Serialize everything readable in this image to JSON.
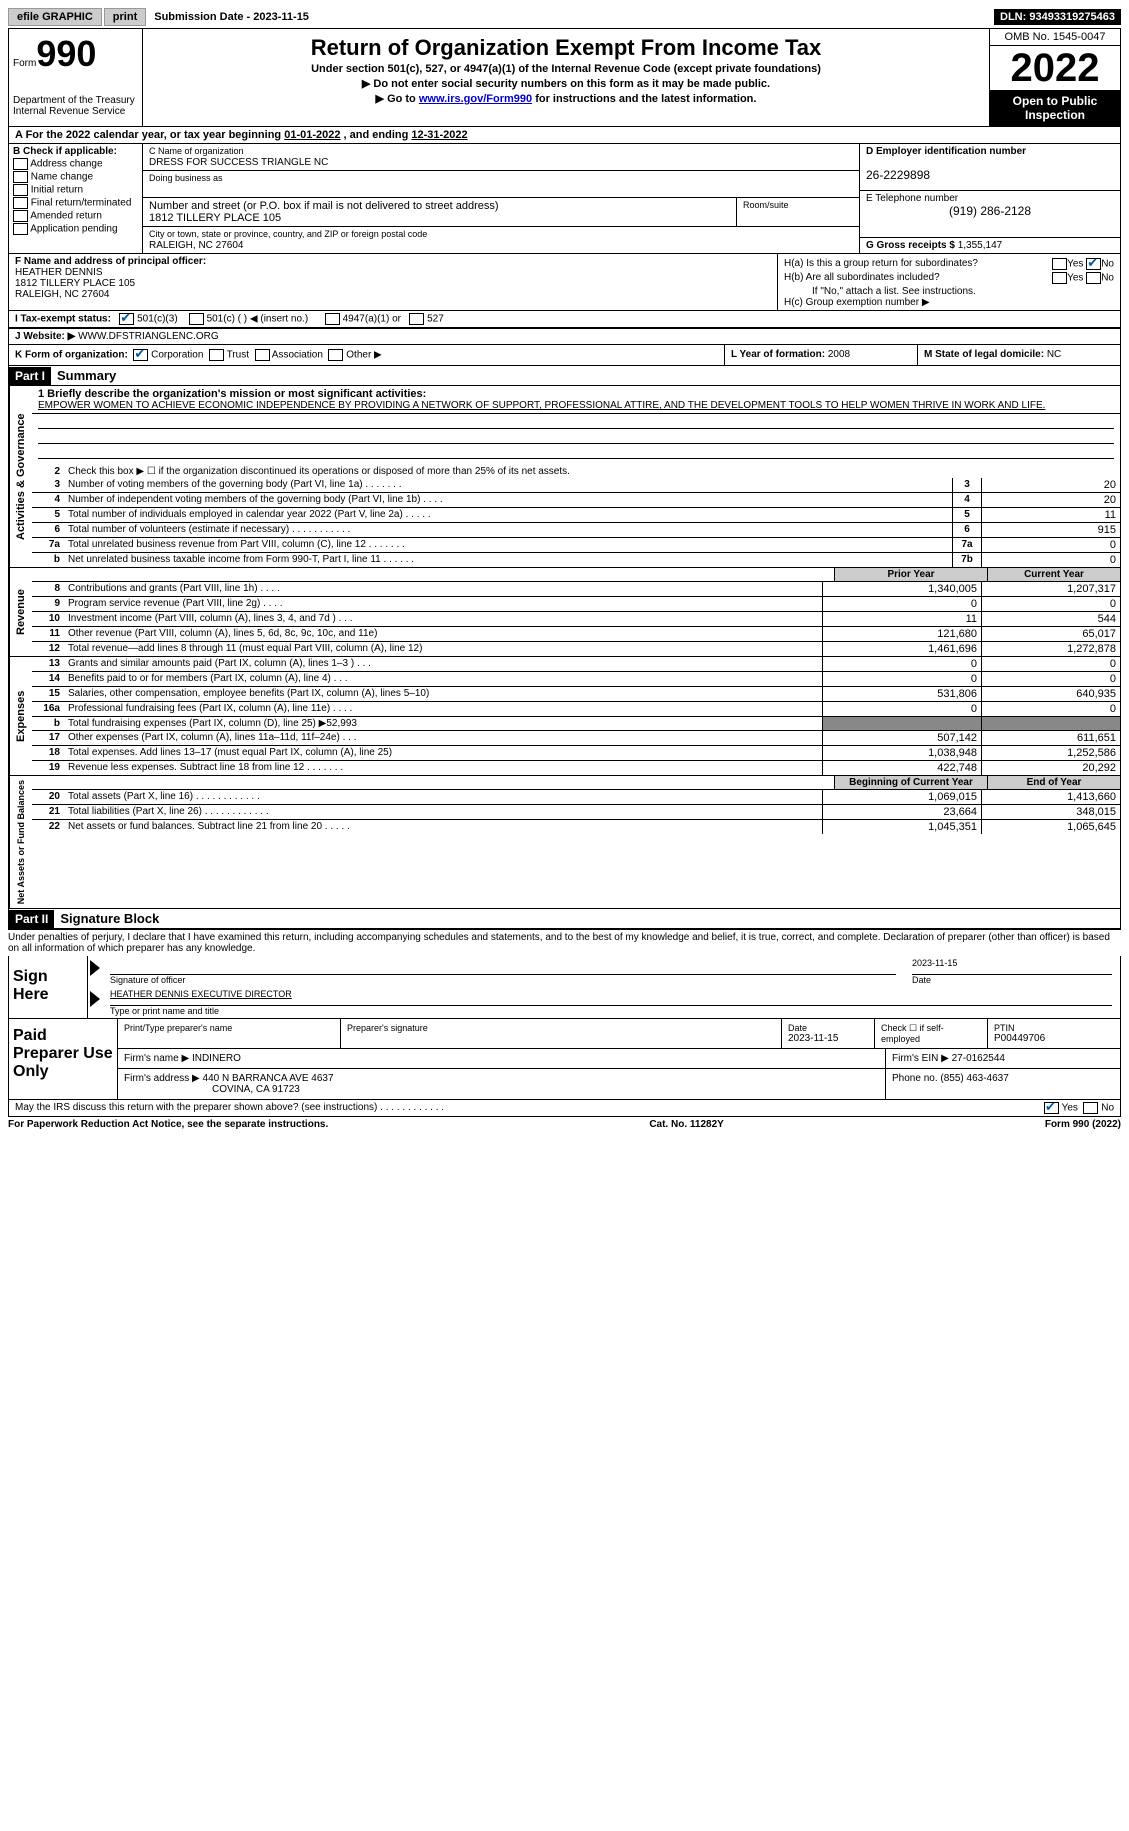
{
  "topbar": {
    "efile": "efile GRAPHIC",
    "print": "print",
    "sub_label": "Submission Date - 2023-11-15",
    "dln": "DLN: 93493319275463"
  },
  "header": {
    "form": "Form",
    "num": "990",
    "dept": "Department of the Treasury",
    "irs": "Internal Revenue Service",
    "title": "Return of Organization Exempt From Income Tax",
    "sub": "Under section 501(c), 527, or 4947(a)(1) of the Internal Revenue Code (except private foundations)",
    "note1": "▶ Do not enter social security numbers on this form as it may be made public.",
    "note2_pre": "▶ Go to ",
    "note2_link": "www.irs.gov/Form990",
    "note2_suf": " for instructions and the latest information.",
    "omb": "OMB No. 1545-0047",
    "year": "2022",
    "open": "Open to Public Inspection"
  },
  "rowA": {
    "text_pre": "A For the 2022 calendar year, or tax year beginning ",
    "begin": "01-01-2022",
    "mid": " , and ending ",
    "end": "12-31-2022"
  },
  "colB": {
    "label": "B Check if applicable:",
    "items": [
      "Address change",
      "Name change",
      "Initial return",
      "Final return/terminated",
      "Amended return",
      "Application pending"
    ]
  },
  "colC": {
    "name_lbl": "C Name of organization",
    "name": "DRESS FOR SUCCESS TRIANGLE NC",
    "dba_lbl": "Doing business as",
    "street_lbl": "Number and street (or P.O. box if mail is not delivered to street address)",
    "street": "1812 TILLERY PLACE 105",
    "room_lbl": "Room/suite",
    "city_lbl": "City or town, state or province, country, and ZIP or foreign postal code",
    "city": "RALEIGH, NC  27604"
  },
  "colD": {
    "ein_lbl": "D Employer identification number",
    "ein": "26-2229898",
    "phone_lbl": "E Telephone number",
    "phone": "(919) 286-2128",
    "gross_lbl": "G Gross receipts $",
    "gross": "1,355,147"
  },
  "rowF": {
    "lbl": "F Name and address of principal officer:",
    "name": "HEATHER DENNIS",
    "street": "1812 TILLERY PLACE 105",
    "city": "RALEIGH, NC  27604"
  },
  "rowH": {
    "ha": "H(a)  Is this a group return for subordinates?",
    "hb": "H(b)  Are all subordinates included?",
    "hb_note": "If \"No,\" attach a list. See instructions.",
    "hc": "H(c)  Group exemption number ▶"
  },
  "rowI": {
    "lbl": "I  Tax-exempt status:",
    "o1": "501(c)(3)",
    "o2": "501(c) (   ) ◀ (insert no.)",
    "o3": "4947(a)(1) or",
    "o4": "527"
  },
  "rowJ": {
    "lbl": "J Website: ▶",
    "val": " WWW.DFSTRIANGLENC.ORG"
  },
  "rowK": {
    "lbl": "K Form of organization:",
    "o1": "Corporation",
    "o2": "Trust",
    "o3": "Association",
    "o4": "Other ▶",
    "l_lbl": "L Year of formation:",
    "l_val": "2008",
    "m_lbl": "M State of legal domicile:",
    "m_val": "NC"
  },
  "part1": {
    "hdr": "Part I",
    "title": "Summary",
    "mission_lbl": "1   Briefly describe the organization's mission or most significant activities:",
    "mission": "EMPOWER WOMEN TO ACHIEVE ECONOMIC INDEPENDENCE BY PROVIDING A NETWORK OF SUPPORT, PROFESSIONAL ATTIRE, AND THE DEVELOPMENT TOOLS TO HELP WOMEN THRIVE IN WORK AND LIFE.",
    "line2": "Check this box ▶ ☐ if the organization discontinued its operations or disposed of more than 25% of its net assets.",
    "side_gov": "Activities & Governance",
    "side_rev": "Revenue",
    "side_exp": "Expenses",
    "side_net": "Net Assets or Fund Balances",
    "rows_gov": [
      {
        "n": "3",
        "d": "Number of voting members of the governing body (Part VI, line 1a)   .    .    .    .    .    .    .",
        "bn": "3",
        "v": "20"
      },
      {
        "n": "4",
        "d": "Number of independent voting members of the governing body (Part VI, line 1b)   .    .    .    .",
        "bn": "4",
        "v": "20"
      },
      {
        "n": "5",
        "d": "Total number of individuals employed in calendar year 2022 (Part V, line 2a)   .    .    .    .    .",
        "bn": "5",
        "v": "11"
      },
      {
        "n": "6",
        "d": "Total number of volunteers (estimate if necessary)    .    .    .    .    .    .    .    .    .    .    .",
        "bn": "6",
        "v": "915"
      },
      {
        "n": "7a",
        "d": "Total unrelated business revenue from Part VIII, column (C), line 12   .    .    .    .    .    .    .",
        "bn": "7a",
        "v": "0"
      },
      {
        "n": "b",
        "d": "Net unrelated business taxable income from Form 990-T, Part I, line 11   .    .    .    .    .    .",
        "bn": "7b",
        "v": "0"
      }
    ],
    "hdr_prior": "Prior Year",
    "hdr_curr": "Current Year",
    "rows_rev": [
      {
        "n": "8",
        "d": "Contributions and grants (Part VIII, line 1h)   .    .    .    .",
        "p": "1,340,005",
        "c": "1,207,317"
      },
      {
        "n": "9",
        "d": "Program service revenue (Part VIII, line 2g)   .    .    .    .",
        "p": "0",
        "c": "0"
      },
      {
        "n": "10",
        "d": "Investment income (Part VIII, column (A), lines 3, 4, and 7d )   .    .    .",
        "p": "11",
        "c": "544"
      },
      {
        "n": "11",
        "d": "Other revenue (Part VIII, column (A), lines 5, 6d, 8c, 9c, 10c, and 11e)",
        "p": "121,680",
        "c": "65,017"
      },
      {
        "n": "12",
        "d": "Total revenue—add lines 8 through 11 (must equal Part VIII, column (A), line 12)",
        "p": "1,461,696",
        "c": "1,272,878"
      }
    ],
    "rows_exp": [
      {
        "n": "13",
        "d": "Grants and similar amounts paid (Part IX, column (A), lines 1–3 )   .    .    .",
        "p": "0",
        "c": "0"
      },
      {
        "n": "14",
        "d": "Benefits paid to or for members (Part IX, column (A), line 4)   .    .    .",
        "p": "0",
        "c": "0"
      },
      {
        "n": "15",
        "d": "Salaries, other compensation, employee benefits (Part IX, column (A), lines 5–10)",
        "p": "531,806",
        "c": "640,935"
      },
      {
        "n": "16a",
        "d": "Professional fundraising fees (Part IX, column (A), line 11e)   .    .    .    .",
        "p": "0",
        "c": "0"
      },
      {
        "n": "b",
        "d": "Total fundraising expenses (Part IX, column (D), line 25) ▶52,993",
        "p": "",
        "c": "",
        "shaded": true
      },
      {
        "n": "17",
        "d": "Other expenses (Part IX, column (A), lines 11a–11d, 11f–24e)   .    .    .",
        "p": "507,142",
        "c": "611,651"
      },
      {
        "n": "18",
        "d": "Total expenses. Add lines 13–17 (must equal Part IX, column (A), line 25)",
        "p": "1,038,948",
        "c": "1,252,586"
      },
      {
        "n": "19",
        "d": "Revenue less expenses. Subtract line 18 from line 12   .    .    .    .    .    .    .",
        "p": "422,748",
        "c": "20,292"
      }
    ],
    "hdr_begin": "Beginning of Current Year",
    "hdr_end": "End of Year",
    "rows_net": [
      {
        "n": "20",
        "d": "Total assets (Part X, line 16)   .    .    .    .    .    .    .    .    .    .    .    .",
        "p": "1,069,015",
        "c": "1,413,660"
      },
      {
        "n": "21",
        "d": "Total liabilities (Part X, line 26)   .    .    .    .    .    .    .    .    .    .    .    .",
        "p": "23,664",
        "c": "348,015"
      },
      {
        "n": "22",
        "d": "Net assets or fund balances. Subtract line 21 from line 20   .    .    .    .    .",
        "p": "1,045,351",
        "c": "1,065,645"
      }
    ]
  },
  "part2": {
    "hdr": "Part II",
    "title": "Signature Block",
    "penalty": "Under penalties of perjury, I declare that I have examined this return, including accompanying schedules and statements, and to the best of my knowledge and belief, it is true, correct, and complete. Declaration of preparer (other than officer) is based on all information of which preparer has any knowledge.",
    "sign": "Sign Here",
    "sig_officer": "Signature of officer",
    "sig_date": "2023-11-15",
    "date_lbl": "Date",
    "sig_name": "HEATHER DENNIS  EXECUTIVE DIRECTOR",
    "sig_name_lbl": "Type or print name and title",
    "paid": "Paid Preparer Use Only",
    "prep_name_lbl": "Print/Type preparer's name",
    "prep_sig_lbl": "Preparer's signature",
    "prep_date_lbl": "Date",
    "prep_date": "2023-11-15",
    "check_lbl": "Check ☐ if self-employed",
    "ptin_lbl": "PTIN",
    "ptin": "P00449706",
    "firm_name_lbl": "Firm's name     ▶",
    "firm_name": "INDINERO",
    "firm_ein_lbl": "Firm's EIN ▶",
    "firm_ein": "27-0162544",
    "firm_addr_lbl": "Firm's address ▶",
    "firm_addr1": "440 N BARRANCA AVE 4637",
    "firm_addr2": "COVINA, CA  91723",
    "firm_phone_lbl": "Phone no.",
    "firm_phone": "(855) 463-4637",
    "discuss": "May the IRS discuss this return with the preparer shown above? (see instructions)   .    .    .    .    .    .    .    .    .    .    .    ."
  },
  "footer": {
    "left": "For Paperwork Reduction Act Notice, see the separate instructions.",
    "mid": "Cat. No. 11282Y",
    "right": "Form 990 (2022)"
  }
}
